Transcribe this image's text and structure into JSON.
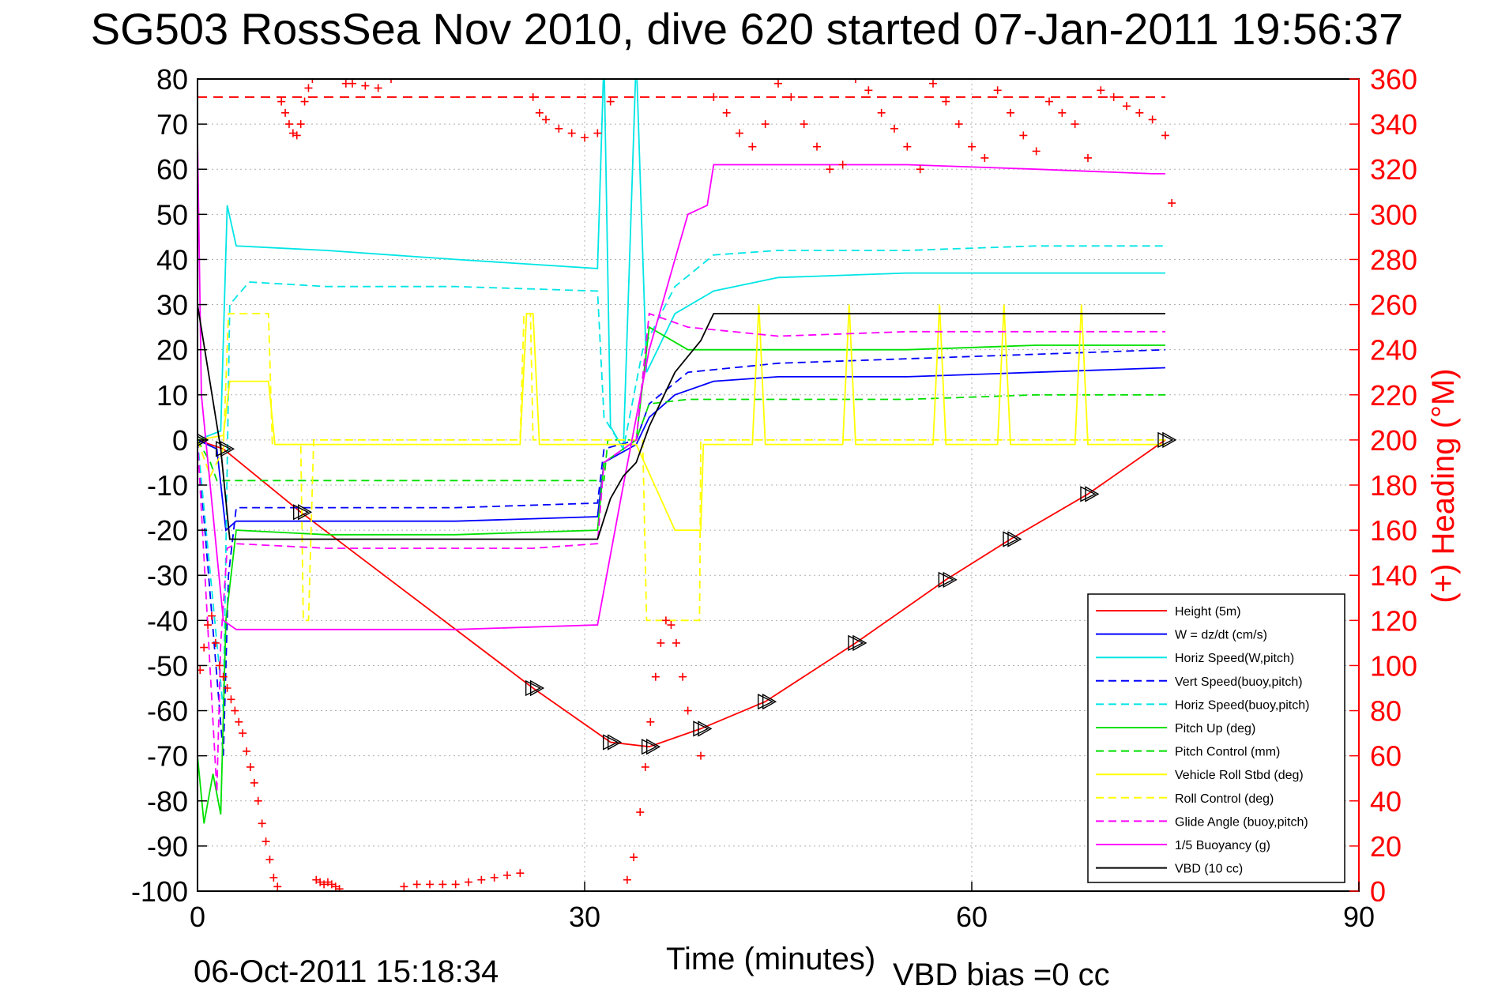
{
  "title": "SG503 RossSea Nov 2010, dive 620 started 07-Jan-2011 19:56:37",
  "footer": {
    "date": "06-Oct-2011 15:18:34",
    "vbd_bias": "VBD bias =0 cc"
  },
  "colors": {
    "red": "#ff0000",
    "blue": "#0000ff",
    "cyan": "#00e5e5",
    "green": "#00e000",
    "yellow": "#ffff00",
    "magenta": "#ff00ff",
    "black": "#000000",
    "grid": "#b0b0b0"
  },
  "chart_data": {
    "type": "line",
    "xlabel": "Time (minutes)",
    "ylabel_right": "(+) Heading (°M)",
    "xlim": [
      0,
      90
    ],
    "ylim_left": [
      -100,
      80
    ],
    "ylim_right": [
      0,
      360
    ],
    "xticks": [
      "0",
      "30",
      "60",
      "90"
    ],
    "yticks_left": [
      "80",
      "70",
      "60",
      "50",
      "40",
      "30",
      "20",
      "10",
      "0",
      "-10",
      "-20",
      "-30",
      "-40",
      "-50",
      "-60",
      "-70",
      "-80",
      "-90",
      "-100"
    ],
    "yticks_right": [
      "360",
      "340",
      "320",
      "300",
      "280",
      "260",
      "240",
      "220",
      "200",
      "180",
      "160",
      "140",
      "120",
      "100",
      "80",
      "60",
      "40",
      "20",
      "0"
    ],
    "grid": true,
    "legend_placement": "bottom-right",
    "reference_line_heading": 352,
    "series": [
      {
        "name": "Height (5m)",
        "color": "red",
        "dash": "solid",
        "x": [
          0,
          2,
          8,
          26,
          32,
          35,
          39,
          44,
          51,
          58,
          63,
          69,
          75
        ],
        "y": [
          0,
          -2,
          -16,
          -55,
          -67,
          -68,
          -64,
          -58,
          -45,
          -31,
          -22,
          -12,
          0
        ]
      },
      {
        "name": "W = dz/dt (cm/s)",
        "color": "blue",
        "dash": "solid",
        "x": [
          0,
          1.5,
          2.2,
          3,
          8,
          20,
          31,
          31.5,
          34,
          35,
          37,
          40,
          45,
          55,
          65,
          75
        ],
        "y": [
          0,
          -2,
          -20,
          -18,
          -18,
          -18,
          -17,
          -5,
          -1,
          5,
          10,
          13,
          14,
          14,
          15,
          16
        ]
      },
      {
        "name": "Horiz Speed(W,pitch)",
        "color": "cyan",
        "dash": "solid",
        "x": [
          0,
          1.8,
          2.3,
          3,
          10,
          20,
          31,
          31.5,
          32,
          33,
          34,
          34.8,
          37,
          40,
          45,
          55,
          65,
          75
        ],
        "y": [
          0,
          2,
          52,
          43,
          42,
          40,
          38,
          85,
          3,
          -2,
          85,
          15,
          28,
          33,
          36,
          37,
          37,
          37
        ]
      },
      {
        "name": "Vert Speed(buoy,pitch)",
        "color": "blue",
        "dash": "dashed",
        "x": [
          0,
          2,
          2.4,
          3,
          10,
          20,
          31,
          31.5,
          34,
          35,
          38,
          45,
          55,
          65,
          75
        ],
        "y": [
          0,
          -70,
          -30,
          -15,
          -15,
          -15,
          -14,
          -2,
          0,
          8,
          15,
          17,
          18,
          19,
          20
        ]
      },
      {
        "name": "Horiz Speed(buoy,pitch)",
        "color": "cyan",
        "dash": "dashed",
        "x": [
          0,
          2,
          2.5,
          4,
          10,
          20,
          31,
          31.5,
          33,
          34.5,
          37,
          40,
          45,
          55,
          65,
          75
        ],
        "y": [
          0,
          -60,
          30,
          35,
          34,
          34,
          33,
          5,
          -2,
          20,
          34,
          41,
          42,
          42,
          43,
          43
        ]
      },
      {
        "name": "Pitch Up (deg)",
        "color": "green",
        "dash": "solid",
        "x": [
          0,
          0.5,
          1.2,
          1.8,
          2.2,
          3,
          10,
          20,
          31,
          31.5,
          34,
          35,
          38,
          45,
          55,
          65,
          75
        ],
        "y": [
          -70,
          -85,
          -74,
          -83,
          -40,
          -20,
          -21,
          -21,
          -20,
          -5,
          0,
          25,
          20,
          20,
          20,
          21,
          21
        ]
      },
      {
        "name": "Pitch Control (mm)",
        "color": "green",
        "dash": "dashed",
        "x": [
          0,
          1,
          1.5,
          2,
          10,
          20,
          31.5,
          31.8,
          34,
          35,
          38,
          45,
          55,
          65,
          75
        ],
        "y": [
          0,
          -5,
          -9,
          -9,
          -9,
          -9,
          -9,
          0,
          0,
          8,
          9,
          9,
          9,
          10,
          10
        ]
      },
      {
        "name": "Vehicle Roll Stbd (deg)",
        "color": "yellow",
        "dash": "solid",
        "x": [
          0,
          2,
          2.5,
          5.5,
          6,
          25,
          25.5,
          26,
          26.5,
          32,
          34,
          37,
          39,
          39.2,
          43,
          43.5,
          44,
          50,
          50.5,
          51,
          57,
          57.5,
          58,
          62,
          62.5,
          63,
          68,
          68.5,
          69,
          75
        ],
        "y": [
          0,
          1,
          13,
          13,
          -1,
          -1,
          28,
          28,
          -1,
          -1,
          -1,
          -20,
          -20,
          -1,
          -1,
          30,
          -1,
          -1,
          30,
          -1,
          -1,
          30,
          -1,
          -1,
          30,
          -1,
          -1,
          30,
          -1,
          -1
        ]
      },
      {
        "name": "Roll Control (deg)",
        "color": "yellow",
        "dash": "dashed",
        "x": [
          0,
          1,
          2,
          2.4,
          5.5,
          5.8,
          8,
          8.2,
          8.6,
          9,
          25,
          25.3,
          25.8,
          26,
          34.5,
          34.8,
          38.9,
          39,
          75
        ],
        "y": [
          0,
          -8,
          -2,
          28,
          28,
          -1,
          -1,
          -40,
          -40,
          0,
          0,
          28,
          28,
          0,
          0,
          -40,
          -40,
          0,
          0
        ]
      },
      {
        "name": "Glide Angle (buoy,pitch)",
        "color": "magenta",
        "dash": "dashed",
        "x": [
          0,
          1.5,
          1.8,
          2.3,
          3,
          10,
          20,
          25,
          26,
          31,
          31.5,
          34,
          35,
          38,
          45,
          55,
          65,
          75
        ],
        "y": [
          0,
          -78,
          -45,
          -24,
          -23,
          -24,
          -24,
          -24,
          -24,
          -23,
          -5,
          0,
          28,
          25,
          23,
          24,
          24,
          24
        ]
      },
      {
        "name": "1/5 Buoyancy (g)",
        "color": "magenta",
        "dash": "solid",
        "x": [
          0,
          0.3,
          2,
          3,
          10,
          20,
          31,
          33,
          35,
          37,
          38,
          39.5,
          40,
          45,
          55,
          65,
          74,
          75
        ],
        "y": [
          67,
          10,
          -40,
          -42,
          -42,
          -42,
          -41,
          -10,
          20,
          40,
          50,
          52,
          61,
          61,
          61,
          60,
          59,
          59
        ]
      },
      {
        "name": "VBD (10 cc)",
        "color": "black",
        "dash": "solid",
        "x": [
          0,
          1.8,
          2.5,
          10,
          20,
          31,
          32,
          33,
          34,
          35,
          37,
          39,
          40,
          45,
          55,
          65,
          75
        ],
        "y": [
          30,
          -2,
          -22,
          -22,
          -22,
          -22,
          -13,
          -8,
          -5,
          3,
          15,
          22,
          28,
          28,
          28,
          28,
          28
        ]
      }
    ],
    "heading_points": {
      "name": "(+) Heading (°M)",
      "color": "red",
      "marker": "+",
      "axis": "right",
      "x": [
        0.2,
        0.5,
        0.8,
        1.1,
        1.4,
        1.7,
        2.0,
        2.3,
        2.6,
        2.9,
        3.2,
        3.5,
        3.8,
        4.1,
        4.4,
        4.7,
        5.0,
        5.3,
        5.6,
        5.9,
        6.2,
        6.5,
        6.8,
        7.1,
        7.4,
        7.7,
        8.0,
        8.3,
        8.6,
        8.9,
        9.2,
        9.5,
        9.8,
        10.1,
        10.4,
        10.7,
        11.0,
        11.5,
        12,
        13,
        14,
        15,
        16,
        17,
        18,
        19,
        20,
        21,
        22,
        23,
        24,
        25,
        26,
        26.5,
        27,
        28,
        29,
        30,
        31,
        32,
        33.3,
        33.8,
        34.3,
        34.7,
        35.1,
        35.5,
        35.9,
        36.3,
        36.7,
        37.1,
        37.6,
        38,
        39,
        40,
        41,
        42,
        43,
        44,
        45,
        46,
        47,
        48,
        49,
        50,
        51,
        52,
        53,
        54,
        55,
        56,
        57,
        58,
        59,
        60,
        61,
        62,
        63,
        64,
        65,
        66,
        67,
        68,
        69,
        70,
        71,
        72,
        73,
        74,
        75,
        75.5
      ],
      "y": [
        98,
        108,
        118,
        122,
        110,
        100,
        95,
        90,
        85,
        80,
        75,
        70,
        62,
        55,
        48,
        40,
        30,
        22,
        14,
        6,
        2,
        350,
        345,
        340,
        336,
        335,
        340,
        350,
        356,
        360,
        5,
        4,
        3,
        4,
        3,
        2,
        1,
        358,
        358,
        357,
        356,
        360,
        2,
        3,
        3,
        3,
        3,
        4,
        5,
        6,
        7,
        8,
        352,
        345,
        342,
        338,
        336,
        334,
        336,
        350,
        5,
        15,
        35,
        55,
        75,
        95,
        110,
        120,
        118,
        110,
        95,
        80,
        60,
        352,
        345,
        336,
        330,
        340,
        358,
        352,
        340,
        330,
        320,
        322,
        360,
        355,
        345,
        338,
        330,
        320,
        358,
        350,
        340,
        330,
        325,
        355,
        345,
        335,
        328,
        350,
        345,
        340,
        325,
        355,
        352,
        348,
        345,
        342,
        335,
        305
      ]
    }
  }
}
